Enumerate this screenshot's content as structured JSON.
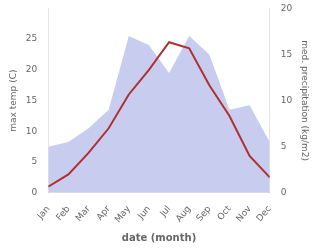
{
  "chart_data": {
    "type": "line",
    "xlabel": "date (month)",
    "ylabel": "max temp (C)",
    "y2label": "med. precipitation (kg/m2)",
    "categories": [
      "Jan",
      "Feb",
      "Mar",
      "Apr",
      "May",
      "Jun",
      "Jul",
      "Aug",
      "Sep",
      "Oct",
      "Nov",
      "Dec"
    ],
    "series": [
      {
        "type": "area",
        "axis": "y2",
        "color": "#c8ccee",
        "values": [
          5.0,
          5.5,
          7.0,
          9.0,
          17.0,
          16.0,
          13.0,
          17.0,
          15.0,
          9.0,
          9.5,
          5.5
        ]
      },
      {
        "type": "line",
        "color": "#b03030",
        "values": [
          1.0,
          3.0,
          6.5,
          10.5,
          16.0,
          20.0,
          24.5,
          23.5,
          17.5,
          12.5,
          6.0,
          2.5
        ]
      }
    ],
    "ylim": [
      0,
      30
    ],
    "yticks": [
      0,
      5,
      10,
      15,
      20,
      25
    ],
    "y2lim": [
      0,
      20
    ],
    "y2ticks": [
      0,
      5,
      10,
      15,
      20
    ],
    "grid": false
  }
}
